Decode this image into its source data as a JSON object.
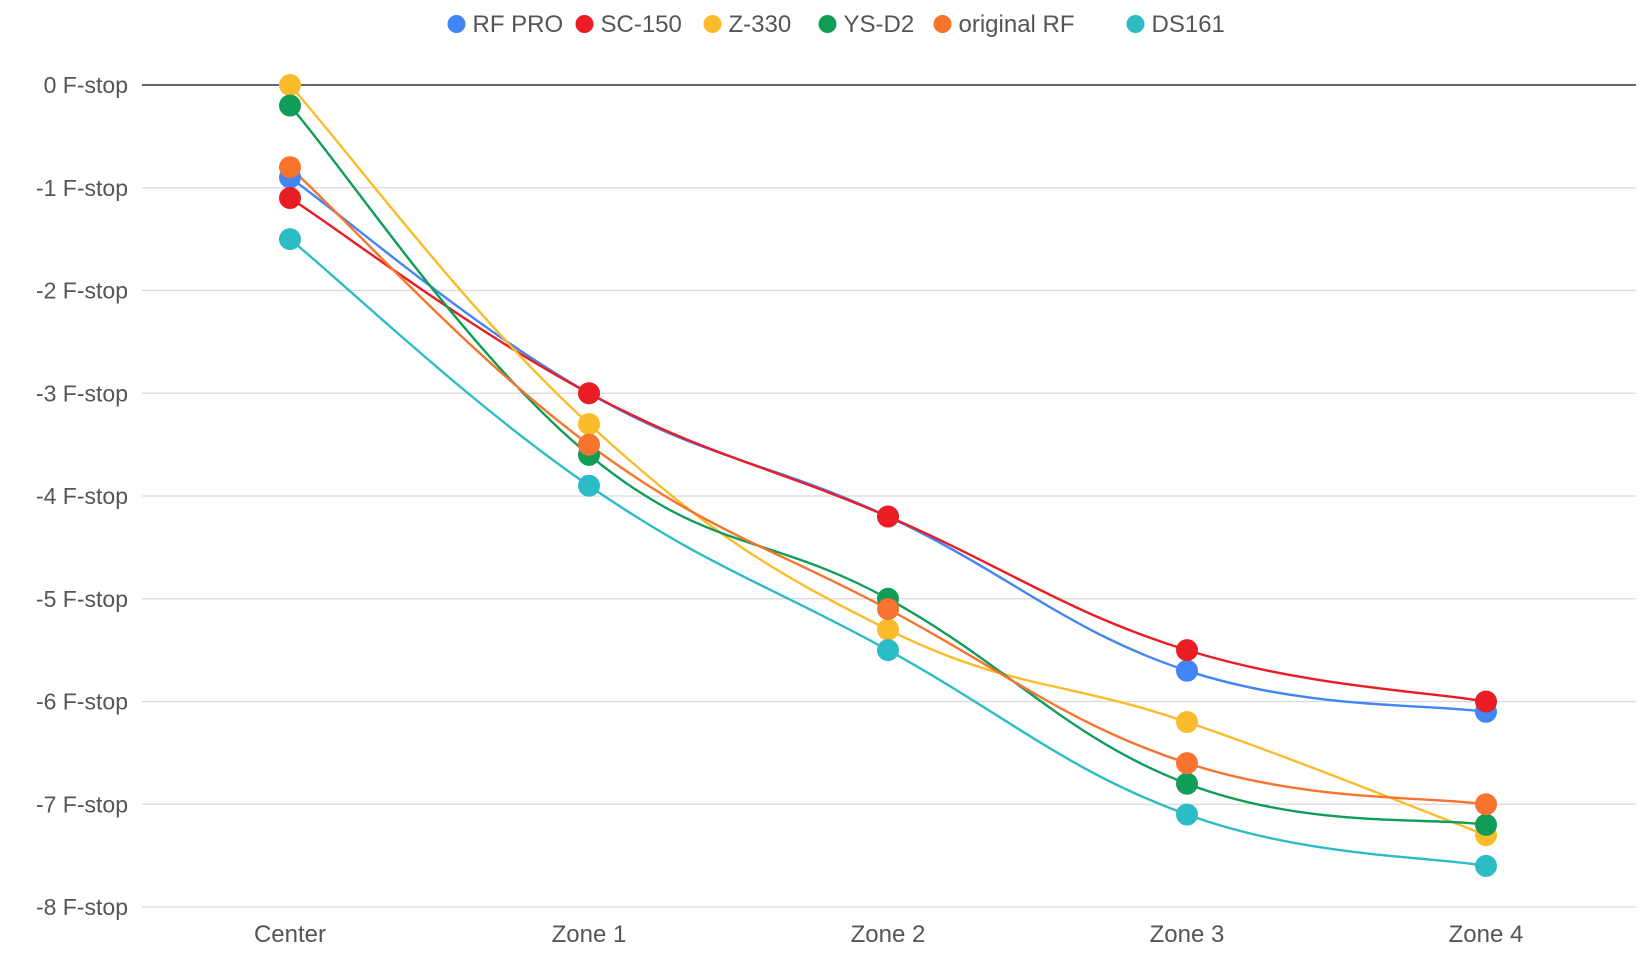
{
  "chart_data": {
    "type": "line",
    "categories": [
      "Center",
      "Zone 1",
      "Zone 2",
      "Zone 3",
      "Zone 4"
    ],
    "y_ticks": [
      {
        "value": 0,
        "label": "0 F-stop"
      },
      {
        "value": -1,
        "label": "-1 F-stop"
      },
      {
        "value": -2,
        "label": "-2 F-stop"
      },
      {
        "value": -3,
        "label": "-3 F-stop"
      },
      {
        "value": -4,
        "label": "-4 F-stop"
      },
      {
        "value": -5,
        "label": "-5 F-stop"
      },
      {
        "value": -6,
        "label": "-6 F-stop"
      },
      {
        "value": -7,
        "label": "-7 F-stop"
      },
      {
        "value": -8,
        "label": "-8 F-stop"
      }
    ],
    "ylim": [
      -8,
      0
    ],
    "grid": true,
    "legend": "top",
    "smooth": true,
    "series": [
      {
        "name": "RF PRO",
        "color": "#4285F4",
        "values": [
          -0.9,
          -3.0,
          -4.2,
          -5.7,
          -6.1
        ]
      },
      {
        "name": "SC-150",
        "color": "#EA1C24",
        "values": [
          -1.1,
          -3.0,
          -4.2,
          -5.5,
          -6.0
        ]
      },
      {
        "name": "Z-330",
        "color": "#FBBC2C",
        "values": [
          0.0,
          -3.3,
          -5.3,
          -6.2,
          -7.3
        ]
      },
      {
        "name": "YS-D2",
        "color": "#0F9D58",
        "values": [
          -0.2,
          -3.6,
          -5.0,
          -6.8,
          -7.2
        ]
      },
      {
        "name": "original RF",
        "color": "#F8732D",
        "values": [
          -0.8,
          -3.5,
          -5.1,
          -6.6,
          -7.0
        ]
      },
      {
        "name": "DS161",
        "color": "#2BBCC6",
        "values": [
          -1.5,
          -3.9,
          -5.5,
          -7.1,
          -7.6
        ]
      }
    ]
  }
}
